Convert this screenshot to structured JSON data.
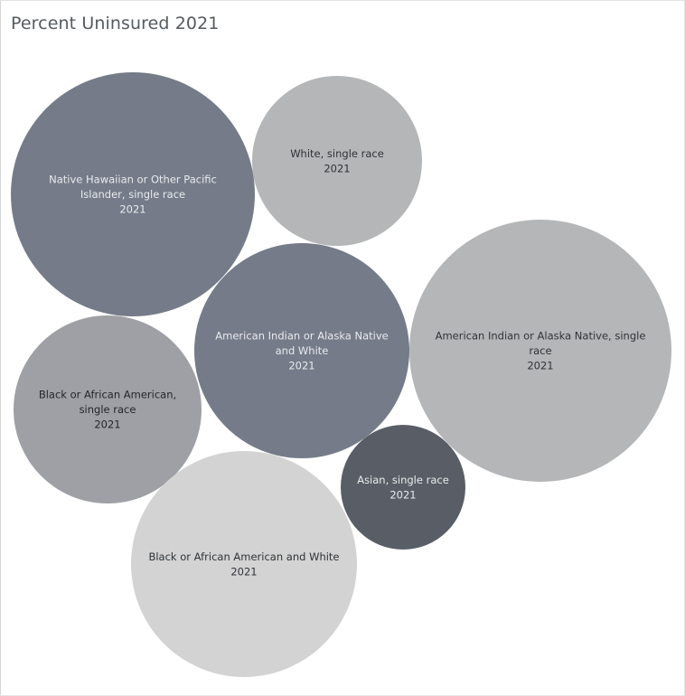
{
  "chart_data": {
    "type": "bubble",
    "title": "Percent Uninsured 2021",
    "year_label": "2021",
    "items": [
      {
        "label": [
          "Native Hawaiian or Other Pacific",
          "Islander, single race"
        ],
        "year": "2021",
        "color": "#757b88",
        "text_color": "#e9ebee"
      },
      {
        "label": [
          "White, single race"
        ],
        "year": "2021",
        "color": "#b4b6b7",
        "text_color": "#2f3337"
      },
      {
        "label": [
          "American Indian or Alaska Native",
          "and White"
        ],
        "year": "2021",
        "color": "#757b88",
        "text_color": "#e9ebee"
      },
      {
        "label": [
          "American Indian or Alaska Native, single",
          "race"
        ],
        "year": "2021",
        "color": "#b4b6b7",
        "text_color": "#2f3337"
      },
      {
        "label": [
          "Black or African American,",
          "single race"
        ],
        "year": "2021",
        "color": "#9ea0a5",
        "text_color": "#222528"
      },
      {
        "label": [
          "Asian, single race"
        ],
        "year": "2021",
        "color": "#595e66",
        "text_color": "#e9ebee"
      },
      {
        "label": [
          "Black or African American and White"
        ],
        "year": "2021",
        "color": "#d3d3d3",
        "text_color": "#2f3337"
      }
    ]
  }
}
